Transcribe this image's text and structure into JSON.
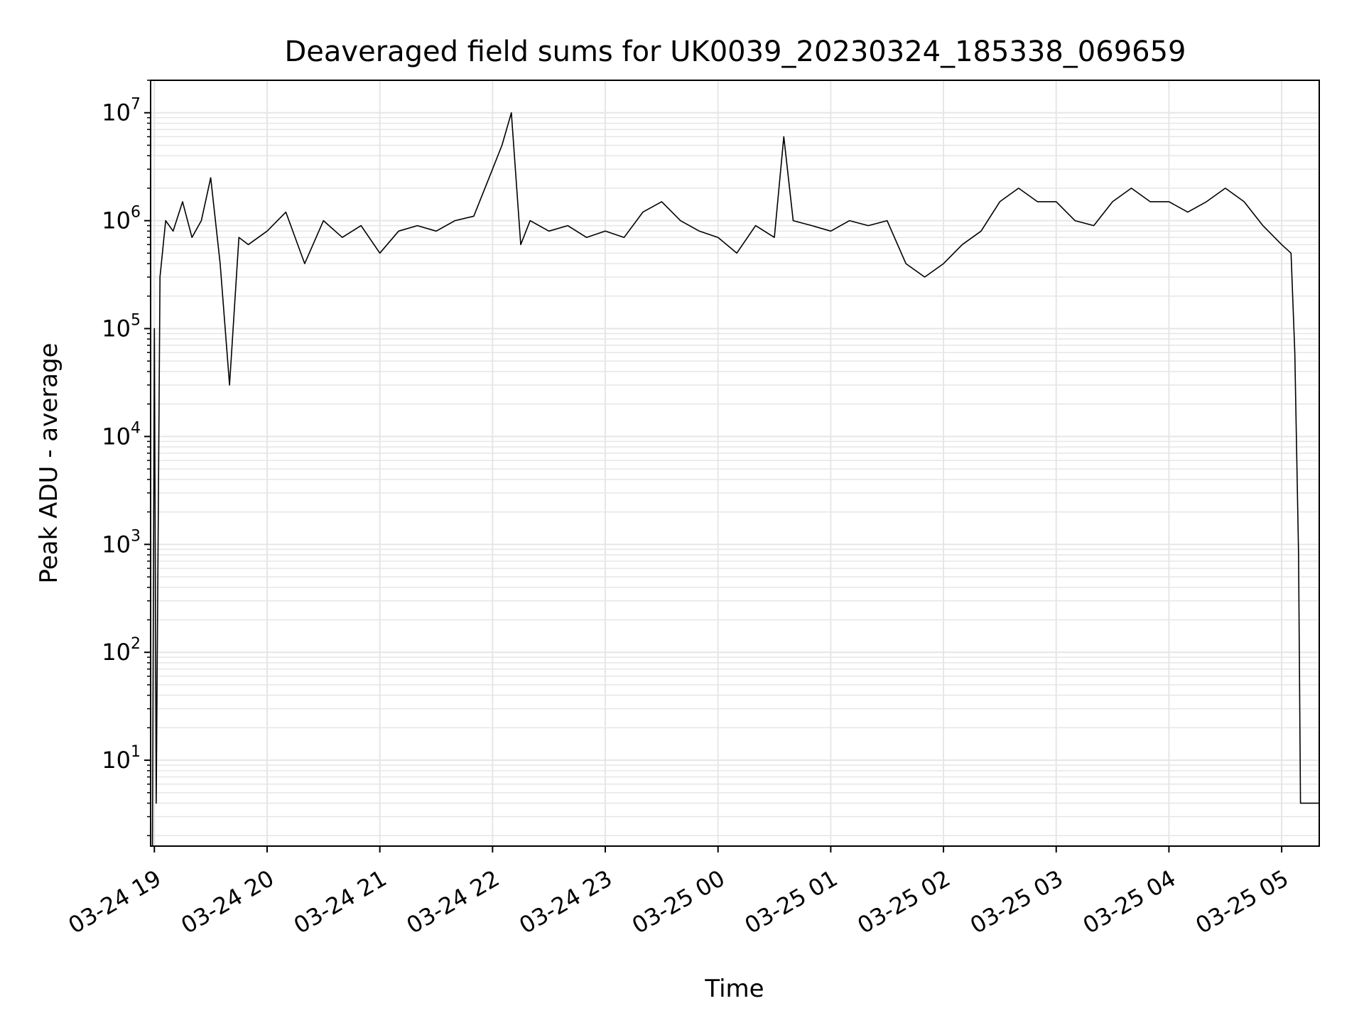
{
  "chart_data": {
    "type": "line",
    "title": "Deaveraged field sums for UK0039_20230324_185338_069659",
    "xlabel": "Time",
    "ylabel": "Peak ADU - average",
    "y_scale": "log",
    "ylim": [
      1.6,
      20000000
    ],
    "xlim": [
      "2023-03-24 18:58",
      "2023-03-25 05:20"
    ],
    "grid": true,
    "line_color": "#000000",
    "grid_color": "#e6e6e6",
    "x_ticks": [
      {
        "label": "03-24 19",
        "value": "2023-03-24 19:00"
      },
      {
        "label": "03-24 20",
        "value": "2023-03-24 20:00"
      },
      {
        "label": "03-24 21",
        "value": "2023-03-24 21:00"
      },
      {
        "label": "03-24 22",
        "value": "2023-03-24 22:00"
      },
      {
        "label": "03-24 23",
        "value": "2023-03-24 23:00"
      },
      {
        "label": "03-25 00",
        "value": "2023-03-25 00:00"
      },
      {
        "label": "03-25 01",
        "value": "2023-03-25 01:00"
      },
      {
        "label": "03-25 02",
        "value": "2023-03-25 02:00"
      },
      {
        "label": "03-25 03",
        "value": "2023-03-25 03:00"
      },
      {
        "label": "03-25 04",
        "value": "2023-03-25 04:00"
      },
      {
        "label": "03-25 05",
        "value": "2023-03-25 05:00"
      }
    ],
    "y_ticks": [
      {
        "base": "10",
        "exp": "1",
        "value": 10
      },
      {
        "base": "10",
        "exp": "2",
        "value": 100
      },
      {
        "base": "10",
        "exp": "3",
        "value": 1000
      },
      {
        "base": "10",
        "exp": "4",
        "value": 10000
      },
      {
        "base": "10",
        "exp": "5",
        "value": 100000
      },
      {
        "base": "10",
        "exp": "6",
        "value": 1000000
      },
      {
        "base": "10",
        "exp": "7",
        "value": 10000000
      }
    ],
    "series": [
      {
        "points": [
          [
            "2023-03-24 18:59",
            1.6
          ],
          [
            "2023-03-24 19:00",
            100000
          ],
          [
            "2023-03-24 19:01",
            4
          ],
          [
            "2023-03-24 19:02",
            1200
          ],
          [
            "2023-03-24 19:03",
            300000
          ],
          [
            "2023-03-24 19:06",
            1000000
          ],
          [
            "2023-03-24 19:10",
            800000
          ],
          [
            "2023-03-24 19:15",
            1500000
          ],
          [
            "2023-03-24 19:20",
            700000
          ],
          [
            "2023-03-24 19:25",
            1000000
          ],
          [
            "2023-03-24 19:30",
            2500000
          ],
          [
            "2023-03-24 19:35",
            400000
          ],
          [
            "2023-03-24 19:40",
            30000
          ],
          [
            "2023-03-24 19:45",
            700000
          ],
          [
            "2023-03-24 19:50",
            600000
          ],
          [
            "2023-03-24 20:00",
            800000
          ],
          [
            "2023-03-24 20:10",
            1200000
          ],
          [
            "2023-03-24 20:20",
            400000
          ],
          [
            "2023-03-24 20:30",
            1000000
          ],
          [
            "2023-03-24 20:40",
            700000
          ],
          [
            "2023-03-24 20:50",
            900000
          ],
          [
            "2023-03-24 21:00",
            500000
          ],
          [
            "2023-03-24 21:10",
            800000
          ],
          [
            "2023-03-24 21:20",
            900000
          ],
          [
            "2023-03-24 21:30",
            800000
          ],
          [
            "2023-03-24 21:40",
            1000000
          ],
          [
            "2023-03-24 21:50",
            1100000
          ],
          [
            "2023-03-24 22:00",
            3000000
          ],
          [
            "2023-03-24 22:05",
            5000000
          ],
          [
            "2023-03-24 22:10",
            10000000
          ],
          [
            "2023-03-24 22:15",
            600000
          ],
          [
            "2023-03-24 22:20",
            1000000
          ],
          [
            "2023-03-24 22:30",
            800000
          ],
          [
            "2023-03-24 22:40",
            900000
          ],
          [
            "2023-03-24 22:50",
            700000
          ],
          [
            "2023-03-24 23:00",
            800000
          ],
          [
            "2023-03-24 23:10",
            700000
          ],
          [
            "2023-03-24 23:20",
            1200000
          ],
          [
            "2023-03-24 23:30",
            1500000
          ],
          [
            "2023-03-24 23:40",
            1000000
          ],
          [
            "2023-03-24 23:50",
            800000
          ],
          [
            "2023-03-25 00:00",
            700000
          ],
          [
            "2023-03-25 00:10",
            500000
          ],
          [
            "2023-03-25 00:20",
            900000
          ],
          [
            "2023-03-25 00:30",
            700000
          ],
          [
            "2023-03-25 00:35",
            6000000
          ],
          [
            "2023-03-25 00:40",
            1000000
          ],
          [
            "2023-03-25 00:50",
            900000
          ],
          [
            "2023-03-25 01:00",
            800000
          ],
          [
            "2023-03-25 01:10",
            1000000
          ],
          [
            "2023-03-25 01:20",
            900000
          ],
          [
            "2023-03-25 01:30",
            1000000
          ],
          [
            "2023-03-25 01:40",
            400000
          ],
          [
            "2023-03-25 01:50",
            300000
          ],
          [
            "2023-03-25 02:00",
            400000
          ],
          [
            "2023-03-25 02:10",
            600000
          ],
          [
            "2023-03-25 02:20",
            800000
          ],
          [
            "2023-03-25 02:30",
            1500000
          ],
          [
            "2023-03-25 02:40",
            2000000
          ],
          [
            "2023-03-25 02:50",
            1500000
          ],
          [
            "2023-03-25 03:00",
            1500000
          ],
          [
            "2023-03-25 03:10",
            1000000
          ],
          [
            "2023-03-25 03:20",
            900000
          ],
          [
            "2023-03-25 03:30",
            1500000
          ],
          [
            "2023-03-25 03:40",
            2000000
          ],
          [
            "2023-03-25 03:50",
            1500000
          ],
          [
            "2023-03-25 04:00",
            1500000
          ],
          [
            "2023-03-25 04:10",
            1200000
          ],
          [
            "2023-03-25 04:20",
            1500000
          ],
          [
            "2023-03-25 04:30",
            2000000
          ],
          [
            "2023-03-25 04:40",
            1500000
          ],
          [
            "2023-03-25 04:50",
            900000
          ],
          [
            "2023-03-25 05:00",
            600000
          ],
          [
            "2023-03-25 05:05",
            500000
          ],
          [
            "2023-03-25 05:07",
            60000
          ],
          [
            "2023-03-25 05:09",
            800
          ],
          [
            "2023-03-25 05:10",
            4
          ],
          [
            "2023-03-25 05:20",
            4
          ]
        ]
      }
    ]
  }
}
